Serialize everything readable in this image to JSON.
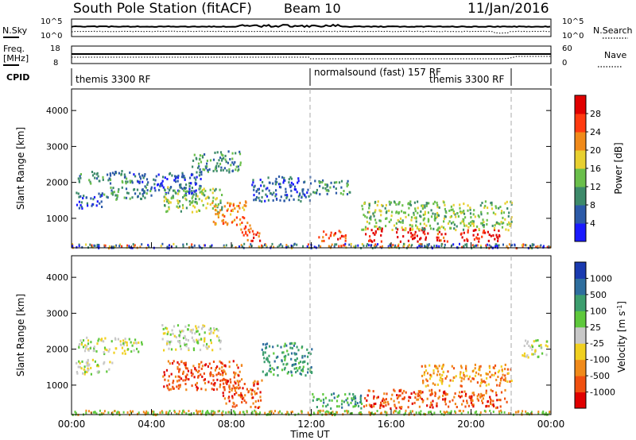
{
  "header": {
    "station": "South Pole Station (fitACF)",
    "beam": "Beam 10",
    "date": "11/Jan/2016"
  },
  "top_panels": {
    "nsky_label": "N.Sky",
    "nsky_ticks": [
      "10^5",
      "10^0"
    ],
    "nsearch_label": "N.Search",
    "nsearch_ticks": [
      "10^5",
      "10^0"
    ],
    "freq_label": "Freq.",
    "freq_unit": "[MHz]",
    "freq_ticks": [
      "18",
      "8"
    ],
    "nave_label": "Nave",
    "nave_ticks": [
      "60",
      "0"
    ],
    "cpid_label": "CPID",
    "cpid_modes": [
      "themis 3300 RF",
      "normalsound (fast) 157 RF",
      "themis 3300 RF"
    ]
  },
  "chart_data": [
    {
      "type": "heatmap",
      "title": "",
      "xlabel": "",
      "ylabel": "Slant Range [km]",
      "x_range_hours": [
        0,
        24
      ],
      "y_range_km": [
        180,
        4600
      ],
      "x_ticks": [
        "00:00",
        "04:00",
        "08:00",
        "12:00",
        "16:00",
        "20:00",
        "00:00"
      ],
      "y_ticks": [
        1000,
        2000,
        3000,
        4000
      ],
      "colorbar": {
        "label": "Power [dB]",
        "ticks": [
          "4",
          "8",
          "12",
          "16",
          "20",
          "24",
          "28"
        ],
        "colors": [
          "#1a1aff",
          "#2c5aa8",
          "#3d8a6a",
          "#6abf4b",
          "#e8d030",
          "#f08a1a",
          "#ff3a10",
          "#e00000"
        ]
      },
      "scatter_regions": [
        {
          "t0": 0.3,
          "t1": 3.0,
          "r0": 2000,
          "r1": 2350,
          "level": 2
        },
        {
          "t0": 0.2,
          "t1": 1.5,
          "r0": 1300,
          "r1": 1750,
          "level": 1
        },
        {
          "t0": 1.5,
          "t1": 4.0,
          "r0": 1550,
          "r1": 1900,
          "level": 2
        },
        {
          "t0": 3.0,
          "t1": 6.5,
          "r0": 1700,
          "r1": 2300,
          "level": 1
        },
        {
          "t0": 6.0,
          "t1": 8.5,
          "r0": 2300,
          "r1": 2900,
          "level": 2
        },
        {
          "t0": 4.5,
          "t1": 7.5,
          "r0": 1200,
          "r1": 1900,
          "level": 3
        },
        {
          "t0": 7.0,
          "t1": 8.8,
          "r0": 850,
          "r1": 1500,
          "level": 5
        },
        {
          "t0": 8.4,
          "t1": 9.4,
          "r0": 400,
          "r1": 850,
          "level": 6
        },
        {
          "t0": 9.0,
          "t1": 12.0,
          "r0": 1500,
          "r1": 2200,
          "level": 1
        },
        {
          "t0": 12.0,
          "t1": 14.0,
          "r0": 1700,
          "r1": 2100,
          "level": 2
        },
        {
          "t0": 12.3,
          "t1": 13.7,
          "r0": 380,
          "r1": 680,
          "level": 6
        },
        {
          "t0": 14.6,
          "t1": 15.6,
          "r0": 380,
          "r1": 750,
          "level": 7
        },
        {
          "t0": 16.2,
          "t1": 17.8,
          "r0": 380,
          "r1": 750,
          "level": 7
        },
        {
          "t0": 18.2,
          "t1": 18.9,
          "r0": 380,
          "r1": 700,
          "level": 6
        },
        {
          "t0": 19.4,
          "t1": 21.5,
          "r0": 380,
          "r1": 720,
          "level": 7
        },
        {
          "t0": 14.5,
          "t1": 22.0,
          "r0": 700,
          "r1": 1500,
          "level": 3
        }
      ]
    },
    {
      "type": "heatmap",
      "title": "",
      "xlabel": "Time UT",
      "ylabel": "Slant Range [km]",
      "x_range_hours": [
        0,
        24
      ],
      "y_range_km": [
        180,
        4600
      ],
      "x_ticks": [
        "00:00",
        "04:00",
        "08:00",
        "12:00",
        "16:00",
        "20:00",
        "00:00"
      ],
      "y_ticks": [
        1000,
        2000,
        3000,
        4000
      ],
      "colorbar": {
        "label": "Velocity [m s",
        "label_exponent": "-1",
        "label_close": "]",
        "ticks": [
          "1000",
          "500",
          "100",
          "25",
          "-25",
          "-100",
          "-500",
          "-1000"
        ],
        "colors": [
          "#1a3ab0",
          "#2e6e9e",
          "#3c9e6e",
          "#5ec83c",
          "#c8c8c8",
          "#f0d020",
          "#f08a1a",
          "#f05010",
          "#e00000"
        ]
      },
      "scatter_regions": [
        {
          "t0": 0.3,
          "t1": 3.5,
          "r0": 1900,
          "r1": 2350,
          "level": 4
        },
        {
          "t0": 0.2,
          "t1": 2.0,
          "r0": 1300,
          "r1": 1750,
          "level": 4
        },
        {
          "t0": 4.5,
          "t1": 7.5,
          "r0": 2000,
          "r1": 2700,
          "level": 4
        },
        {
          "t0": 4.5,
          "t1": 8.5,
          "r0": 900,
          "r1": 1700,
          "level": 7
        },
        {
          "t0": 7.5,
          "t1": 9.5,
          "r0": 400,
          "r1": 1200,
          "level": 7
        },
        {
          "t0": 9.5,
          "t1": 12.0,
          "r0": 1300,
          "r1": 2200,
          "level": 2
        },
        {
          "t0": 12.0,
          "t1": 14.5,
          "r0": 380,
          "r1": 800,
          "level": 2
        },
        {
          "t0": 14.6,
          "t1": 17.8,
          "r0": 380,
          "r1": 900,
          "level": 7
        },
        {
          "t0": 17.8,
          "t1": 21.8,
          "r0": 380,
          "r1": 900,
          "level": 7
        },
        {
          "t0": 17.5,
          "t1": 22.0,
          "r0": 1000,
          "r1": 1600,
          "level": 6
        },
        {
          "t0": 22.5,
          "t1": 23.8,
          "r0": 1800,
          "r1": 2300,
          "level": 4
        }
      ]
    }
  ]
}
